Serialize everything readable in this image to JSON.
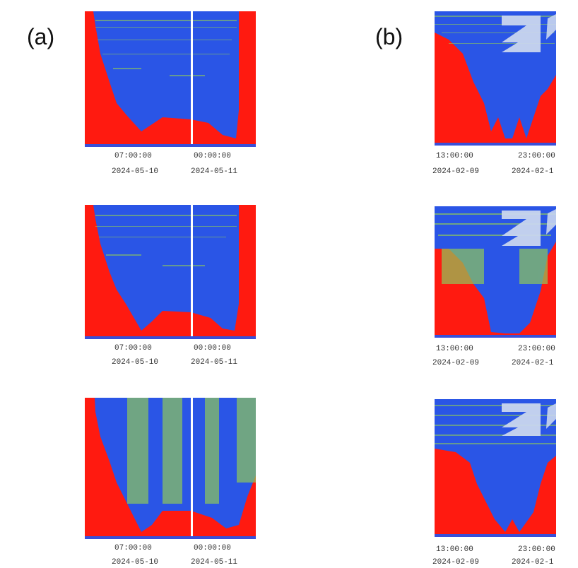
{
  "figure": {
    "panel_a_label": "(a)",
    "panel_b_label": "(b)"
  },
  "colors": {
    "background_red": "#ff1a10",
    "signal_blue": "#2a55e6",
    "noise_green": "#8ec85a",
    "axis_blue": "#3a4fd8",
    "marker_white": "#ffffff",
    "logo_pale": "#c9d6ee"
  },
  "panel_a": {
    "time_labels": [
      "07:00:00",
      "00:00:00"
    ],
    "date_labels": [
      "2024-05-10",
      "2024-05-11"
    ]
  },
  "panel_b": {
    "time_labels": [
      "13:00:00",
      "23:00:00"
    ],
    "date_labels": [
      "2024-02-09",
      "2024-02-1"
    ]
  }
}
